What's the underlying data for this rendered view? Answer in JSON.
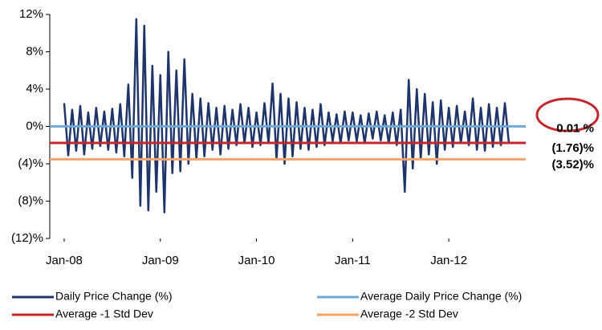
{
  "chart_data": {
    "type": "line",
    "x": [
      2008,
      2008.042,
      2008.083,
      2008.125,
      2008.167,
      2008.208,
      2008.25,
      2008.292,
      2008.333,
      2008.375,
      2008.417,
      2008.458,
      2008.5,
      2008.542,
      2008.583,
      2008.625,
      2008.667,
      2008.708,
      2008.75,
      2008.792,
      2008.833,
      2008.875,
      2008.917,
      2008.958,
      2009,
      2009.042,
      2009.083,
      2009.125,
      2009.167,
      2009.208,
      2009.25,
      2009.292,
      2009.333,
      2009.375,
      2009.417,
      2009.458,
      2009.5,
      2009.542,
      2009.583,
      2009.625,
      2009.667,
      2009.708,
      2009.75,
      2009.792,
      2009.833,
      2009.875,
      2009.917,
      2009.958,
      2010,
      2010.042,
      2010.083,
      2010.125,
      2010.167,
      2010.208,
      2010.25,
      2010.292,
      2010.333,
      2010.375,
      2010.417,
      2010.458,
      2010.5,
      2010.542,
      2010.583,
      2010.625,
      2010.667,
      2010.708,
      2010.75,
      2010.792,
      2010.833,
      2010.875,
      2010.917,
      2010.958,
      2011,
      2011.042,
      2011.083,
      2011.125,
      2011.167,
      2011.208,
      2011.25,
      2011.292,
      2011.333,
      2011.375,
      2011.417,
      2011.458,
      2011.5,
      2011.542,
      2011.583,
      2011.625,
      2011.667,
      2011.708,
      2011.75,
      2011.792,
      2011.833,
      2011.875,
      2011.917,
      2011.958,
      2012,
      2012.042,
      2012.083,
      2012.125,
      2012.167,
      2012.208,
      2012.25,
      2012.292,
      2012.333,
      2012.375,
      2012.417,
      2012.458,
      2012.5,
      2012.542,
      2012.583,
      2012.625
    ],
    "series": [
      {
        "name": "Daily Price Change (%)",
        "color": "#1f3468",
        "values": [
          2.5,
          -3.1,
          1.8,
          -2.6,
          2.2,
          -3.0,
          1.5,
          -2.4,
          2.0,
          -2.1,
          1.6,
          -2.5,
          1.9,
          -2.8,
          2.4,
          -3.2,
          4.5,
          -5.5,
          11.5,
          -8.5,
          10.8,
          -9.0,
          6.5,
          -7.0,
          5.5,
          -9.2,
          8.0,
          -5.0,
          6.0,
          -4.8,
          7.2,
          -4.0,
          3.5,
          -3.5,
          3.0,
          -3.2,
          2.5,
          -2.5,
          2.0,
          -3.0,
          2.2,
          -2.4,
          1.8,
          -2.0,
          2.4,
          -1.8,
          2.0,
          -2.2,
          1.5,
          -2.0,
          2.5,
          -1.8,
          4.6,
          -3.5,
          3.5,
          -4.0,
          3.0,
          -3.2,
          2.6,
          -2.4,
          2.0,
          -2.5,
          1.8,
          -2.2,
          2.4,
          -2.0,
          1.5,
          -1.6,
          1.3,
          -1.8,
          1.6,
          -1.5,
          1.5,
          -1.6,
          1.2,
          -1.8,
          1.4,
          -1.3,
          1.6,
          -1.5,
          1.2,
          -1.8,
          1.5,
          -2.0,
          1.8,
          -7.0,
          5.0,
          -4.5,
          4.0,
          -3.5,
          3.5,
          -3.0,
          2.6,
          -4.0,
          2.8,
          -2.5,
          2.0,
          -2.2,
          2.2,
          -1.8,
          1.6,
          -2.0,
          3.0,
          -2.5,
          2.0,
          -2.6,
          2.4,
          -2.2,
          2.0,
          -2.0,
          2.5,
          -1.8
        ]
      }
    ],
    "reference_lines": [
      {
        "name": "Average Daily Price Change (%)",
        "value": 0.01,
        "value_label": "0.01 %",
        "color": "#6fa8d6"
      },
      {
        "name": "Average -1 Std Dev",
        "value": -1.76,
        "value_label": "(1.76)%",
        "color": "#c0282d"
      },
      {
        "name": "Average -2 Std Dev",
        "value": -3.52,
        "value_label": "(3.52)%",
        "color": "#f4a46a"
      }
    ],
    "xlim": [
      2007.85,
      2012.8
    ],
    "xticks": [
      {
        "value": 2008,
        "label": "Jan-08"
      },
      {
        "value": 2009,
        "label": "Jan-09"
      },
      {
        "value": 2010,
        "label": "Jan-10"
      },
      {
        "value": 2011,
        "label": "Jan-11"
      },
      {
        "value": 2012,
        "label": "Jan-12"
      }
    ],
    "ylim": [
      -12,
      12
    ],
    "yticks": [
      {
        "value": 12,
        "label": "12%"
      },
      {
        "value": 8,
        "label": "8%"
      },
      {
        "value": 4,
        "label": "4%"
      },
      {
        "value": 0,
        "label": "0%"
      },
      {
        "value": -4,
        "label": "(4)%"
      },
      {
        "value": -8,
        "label": "(8)%"
      },
      {
        "value": -12,
        "label": "(12)%"
      }
    ]
  }
}
